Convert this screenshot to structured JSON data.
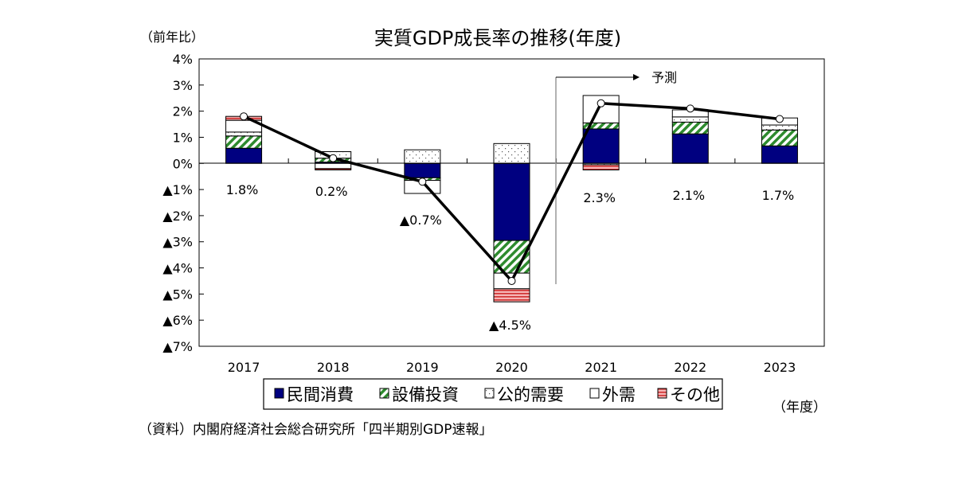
{
  "chart_data": {
    "type": "bar",
    "stacked": true,
    "title": "実質GDP成長率の推移(年度)",
    "ylabel": "（前年比）",
    "xlabel": "（年度）",
    "source": "（資料）内閣府経済社会総合研究所「四半期別GDP速報」",
    "forecast_label": "予測",
    "forecast_from": "2021",
    "ylim": [
      -7,
      4
    ],
    "yticks": [
      4,
      3,
      2,
      1,
      0,
      -1,
      -2,
      -3,
      -4,
      -5,
      -6,
      -7
    ],
    "ytick_labels": [
      "4%",
      "3%",
      "2%",
      "1%",
      "0%",
      "▲1%",
      "▲2%",
      "▲3%",
      "▲4%",
      "▲5%",
      "▲6%",
      "▲7%"
    ],
    "categories": [
      "2017",
      "2018",
      "2019",
      "2020",
      "2021",
      "2022",
      "2023"
    ],
    "series": [
      {
        "name": "民間消費",
        "color": "#000080",
        "pattern": "solid",
        "values": [
          0.58,
          0.05,
          -0.55,
          -2.95,
          1.32,
          1.13,
          0.67
        ]
      },
      {
        "name": "設備投資",
        "color": "#2e8b2e",
        "pattern": "diagonal-stripes",
        "values": [
          0.47,
          0.15,
          -0.1,
          -1.25,
          0.23,
          0.45,
          0.61
        ]
      },
      {
        "name": "公的需要",
        "color": "#888888",
        "pattern": "dots",
        "values": [
          0.15,
          0.25,
          0.52,
          0.76,
          -0.05,
          0.2,
          0.19
        ]
      },
      {
        "name": "外需",
        "color": "#ffffff",
        "pattern": "blank",
        "values": [
          0.45,
          -0.2,
          -0.5,
          -0.6,
          1.05,
          0.27,
          0.27
        ]
      },
      {
        "name": "その他",
        "color": "#e06060",
        "pattern": "horizontal-stripes",
        "values": [
          0.15,
          -0.05,
          0,
          -0.5,
          -0.2,
          0,
          0
        ]
      }
    ],
    "total": {
      "name": "実質GDP成長率",
      "values": [
        1.8,
        0.2,
        -0.7,
        -4.5,
        2.3,
        2.1,
        1.7
      ],
      "labels": [
        "1.8%",
        "0.2%",
        "▲0.7%",
        "▲4.5%",
        "2.3%",
        "2.1%",
        "1.7%"
      ]
    },
    "grid": false,
    "legend": "bottom"
  }
}
